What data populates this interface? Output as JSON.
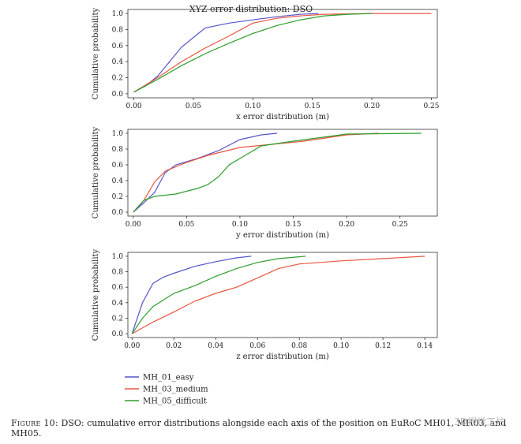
{
  "caption": {
    "figure_label": "Figure 10:",
    "text": "DSO: cumulative error distributions alongside each axis of the position on EuRoC MH01, MH03, and MH05."
  },
  "watermark": "3D视觉工坊",
  "colors": {
    "easy": "#5555cc",
    "medium": "#e8553d",
    "difficult": "#2e9e2e"
  },
  "legend": [
    {
      "label": "MH_01_easy",
      "color": "#5555cc"
    },
    {
      "label": "MH_03_medium",
      "color": "#e8553d"
    },
    {
      "label": "MH_05_difficult",
      "color": "#2e9e2e"
    }
  ],
  "chart_data": [
    {
      "type": "line",
      "title": "XYZ error distribution: DSO",
      "xlabel": "x error distribution (m)",
      "ylabel": "Cumulative probability",
      "xlim": [
        -0.005,
        0.255
      ],
      "ylim": [
        -0.05,
        1.05
      ],
      "xticks": [
        "0.00",
        "0.05",
        "0.10",
        "0.15",
        "0.20",
        "0.25"
      ],
      "xtick_values": [
        0,
        0.05,
        0.1,
        0.15,
        0.2,
        0.25
      ],
      "yticks": [
        "0.0",
        "0.2",
        "0.4",
        "0.6",
        "0.8",
        "1.0"
      ],
      "ytick_values": [
        0,
        0.2,
        0.4,
        0.6,
        0.8,
        1.0
      ],
      "series": [
        {
          "name": "MH_01_easy",
          "color": "#5555cc",
          "x": [
            0,
            0.01,
            0.02,
            0.03,
            0.04,
            0.05,
            0.06,
            0.08,
            0.1,
            0.12,
            0.14,
            0.155
          ],
          "y": [
            0.02,
            0.1,
            0.22,
            0.4,
            0.58,
            0.7,
            0.82,
            0.88,
            0.92,
            0.96,
            0.99,
            1.0
          ]
        },
        {
          "name": "MH_03_medium",
          "color": "#e8553d",
          "x": [
            0,
            0.02,
            0.04,
            0.06,
            0.08,
            0.1,
            0.12,
            0.14,
            0.16,
            0.2,
            0.25
          ],
          "y": [
            0.02,
            0.2,
            0.4,
            0.57,
            0.72,
            0.88,
            0.94,
            0.97,
            0.99,
            1.0,
            1.0
          ]
        },
        {
          "name": "MH_05_difficult",
          "color": "#2e9e2e",
          "x": [
            0,
            0.02,
            0.04,
            0.06,
            0.08,
            0.1,
            0.12,
            0.14,
            0.16,
            0.18,
            0.2
          ],
          "y": [
            0.02,
            0.18,
            0.35,
            0.5,
            0.63,
            0.75,
            0.85,
            0.92,
            0.97,
            0.99,
            1.0
          ]
        }
      ]
    },
    {
      "type": "line",
      "title": "",
      "xlabel": "y error distribution (m)",
      "ylabel": "Cumulative probability",
      "xlim": [
        -0.005,
        0.285
      ],
      "ylim": [
        -0.05,
        1.05
      ],
      "xticks": [
        "0.00",
        "0.05",
        "0.10",
        "0.15",
        "0.20",
        "0.25"
      ],
      "xtick_values": [
        0,
        0.05,
        0.1,
        0.15,
        0.2,
        0.25
      ],
      "yticks": [
        "0.0",
        "0.2",
        "0.4",
        "0.6",
        "0.8",
        "1.0"
      ],
      "ytick_values": [
        0,
        0.2,
        0.4,
        0.6,
        0.8,
        1.0
      ],
      "series": [
        {
          "name": "MH_01_easy",
          "color": "#5555cc",
          "x": [
            0,
            0.01,
            0.02,
            0.03,
            0.04,
            0.06,
            0.08,
            0.1,
            0.12,
            0.135
          ],
          "y": [
            0.0,
            0.12,
            0.25,
            0.5,
            0.6,
            0.68,
            0.78,
            0.92,
            0.98,
            1.0
          ]
        },
        {
          "name": "MH_03_medium",
          "color": "#e8553d",
          "x": [
            0,
            0.01,
            0.02,
            0.03,
            0.05,
            0.07,
            0.1,
            0.13,
            0.16,
            0.2,
            0.23
          ],
          "y": [
            0.0,
            0.15,
            0.38,
            0.52,
            0.63,
            0.72,
            0.82,
            0.86,
            0.9,
            0.98,
            1.0
          ]
        },
        {
          "name": "MH_05_difficult",
          "color": "#2e9e2e",
          "x": [
            0,
            0.01,
            0.02,
            0.04,
            0.06,
            0.07,
            0.08,
            0.09,
            0.1,
            0.12,
            0.15,
            0.2,
            0.27
          ],
          "y": [
            0.0,
            0.15,
            0.2,
            0.23,
            0.3,
            0.35,
            0.45,
            0.6,
            0.68,
            0.84,
            0.9,
            0.99,
            1.0
          ]
        }
      ]
    },
    {
      "type": "line",
      "title": "",
      "xlabel": "z error distribution (m)",
      "ylabel": "Cumulative probability",
      "xlim": [
        -0.002,
        0.146
      ],
      "ylim": [
        -0.05,
        1.05
      ],
      "xticks": [
        "0.00",
        "0.02",
        "0.04",
        "0.06",
        "0.08",
        "0.10",
        "0.12",
        "0.14"
      ],
      "xtick_values": [
        0,
        0.02,
        0.04,
        0.06,
        0.08,
        0.1,
        0.12,
        0.14
      ],
      "yticks": [
        "0.0",
        "0.2",
        "0.4",
        "0.6",
        "0.8",
        "1.0"
      ],
      "ytick_values": [
        0,
        0.2,
        0.4,
        0.6,
        0.8,
        1.0
      ],
      "series": [
        {
          "name": "MH_01_easy",
          "color": "#5555cc",
          "x": [
            0,
            0.005,
            0.01,
            0.015,
            0.02,
            0.03,
            0.04,
            0.05,
            0.057
          ],
          "y": [
            0.0,
            0.4,
            0.65,
            0.73,
            0.78,
            0.87,
            0.93,
            0.98,
            1.0
          ]
        },
        {
          "name": "MH_03_medium",
          "color": "#e8553d",
          "x": [
            0,
            0.01,
            0.02,
            0.03,
            0.04,
            0.05,
            0.06,
            0.07,
            0.08,
            0.1,
            0.12,
            0.14
          ],
          "y": [
            0.0,
            0.15,
            0.28,
            0.42,
            0.52,
            0.6,
            0.72,
            0.84,
            0.9,
            0.94,
            0.97,
            1.0
          ]
        },
        {
          "name": "MH_05_difficult",
          "color": "#2e9e2e",
          "x": [
            0,
            0.005,
            0.01,
            0.02,
            0.03,
            0.04,
            0.05,
            0.06,
            0.07,
            0.083
          ],
          "y": [
            0.0,
            0.2,
            0.35,
            0.52,
            0.62,
            0.74,
            0.84,
            0.92,
            0.97,
            1.0
          ]
        }
      ]
    }
  ]
}
